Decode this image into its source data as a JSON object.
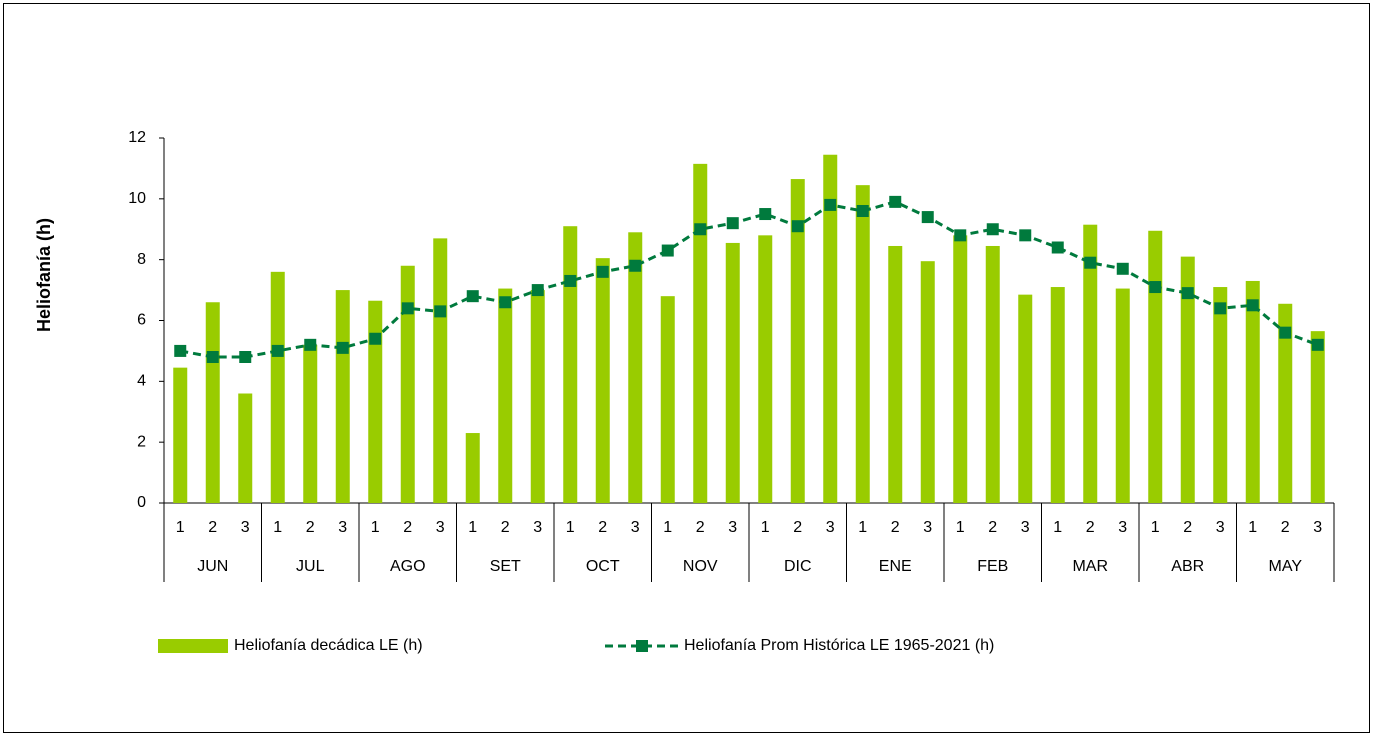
{
  "chart_data": {
    "type": "bar",
    "y_label": "Heliofanía (h)",
    "categories": [
      "1",
      "2",
      "3",
      "1",
      "2",
      "3",
      "1",
      "2",
      "3",
      "1",
      "2",
      "3",
      "1",
      "2",
      "3",
      "1",
      "2",
      "3",
      "1",
      "2",
      "3",
      "1",
      "2",
      "3",
      "1",
      "2",
      "3",
      "1",
      "2",
      "3",
      "1",
      "2",
      "3",
      "1",
      "2",
      "3"
    ],
    "category_groups": [
      "JUN",
      "JUL",
      "AGO",
      "SET",
      "OCT",
      "NOV",
      "DIC",
      "ENE",
      "FEB",
      "MAR",
      "ABR",
      "MAY"
    ],
    "series": [
      {
        "name": "Heliofanía decádica LE (h)",
        "type": "bar",
        "color": "#99cc00",
        "values": [
          4.45,
          6.6,
          3.6,
          7.6,
          5.2,
          7.0,
          6.65,
          7.8,
          8.7,
          2.3,
          7.05,
          7.0,
          9.1,
          8.05,
          8.9,
          6.8,
          11.15,
          8.55,
          8.8,
          10.65,
          11.45,
          10.45,
          8.45,
          7.95,
          8.8,
          8.45,
          6.85,
          7.1,
          9.15,
          7.05,
          8.95,
          8.1,
          7.1,
          7.3,
          6.55,
          5.65
        ]
      },
      {
        "name": "Heliofanía Prom Histórica LE 1965-2021 (h)",
        "type": "line",
        "color": "#007a3d",
        "values": [
          5.0,
          4.8,
          4.8,
          5.0,
          5.2,
          5.1,
          5.4,
          6.4,
          6.3,
          6.8,
          6.6,
          7.0,
          7.3,
          7.6,
          7.8,
          8.3,
          9.0,
          9.2,
          9.5,
          9.1,
          9.8,
          9.6,
          9.9,
          9.4,
          8.8,
          9.0,
          8.8,
          8.4,
          7.9,
          7.7,
          7.1,
          6.9,
          6.4,
          6.5,
          5.6,
          5.2
        ]
      }
    ],
    "ylim": [
      0,
      12
    ],
    "yticks": [
      0,
      2,
      4,
      6,
      8,
      10,
      12
    ],
    "grid": false
  }
}
